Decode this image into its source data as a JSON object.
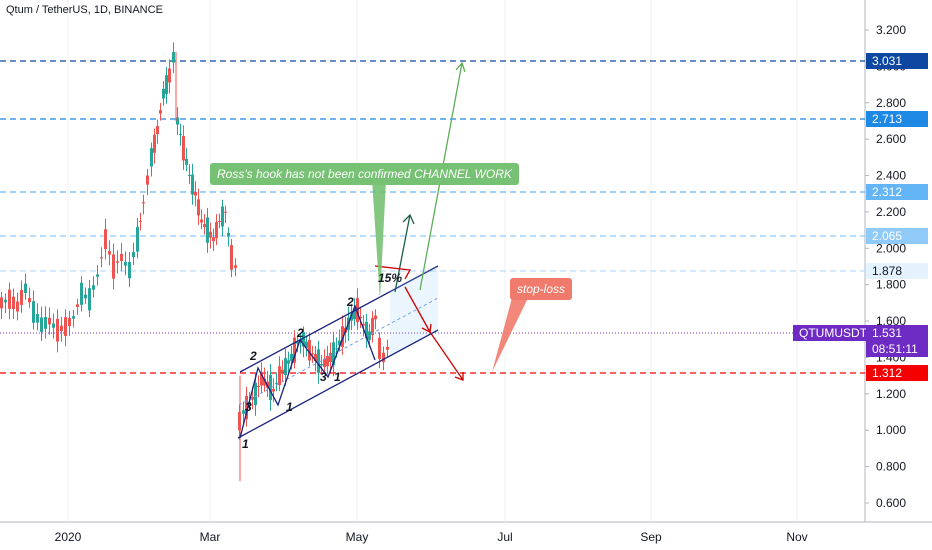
{
  "header": {
    "title": "Qtum / TetherUS, 1D, BINANCE"
  },
  "y_axis": {
    "ticks": [
      "3.200",
      "3.000",
      "2.800",
      "2.600",
      "2.400",
      "2.200",
      "2.000",
      "1.800",
      "1.600",
      "1.400",
      "1.200",
      "1.000",
      "0.800",
      "0.600"
    ]
  },
  "x_axis": {
    "ticks": [
      "2020",
      "Mar",
      "May",
      "Jul",
      "Sep",
      "Nov"
    ]
  },
  "levels": [
    {
      "label": "3.031",
      "color": "#0d47a1"
    },
    {
      "label": "2.713",
      "color": "#1e88e5"
    },
    {
      "label": "2.312",
      "color": "#64b5f6"
    },
    {
      "label": "2.065",
      "color": "#90caf9"
    },
    {
      "label": "1.878",
      "color": "#e3f2fd"
    },
    {
      "label": "1.312",
      "color": "#f50000"
    }
  ],
  "symbol": {
    "name": "QTUMUSDT",
    "price": "1.531",
    "countdown": "08:51:11",
    "color": "#6e2bc4"
  },
  "annotations": {
    "hook": "Ross's hook has not been confirmed  CHANNEL WORK",
    "stoploss": "stop-loss",
    "percent": "15%",
    "waves": [
      "1",
      "2",
      "3",
      "1",
      "2",
      "3",
      "1",
      "2"
    ]
  },
  "colors": {
    "up": "#26a69a",
    "down": "#ef5350",
    "channel": "#1a237e",
    "hook": "#76c173",
    "stop": "#f07b6c"
  }
}
